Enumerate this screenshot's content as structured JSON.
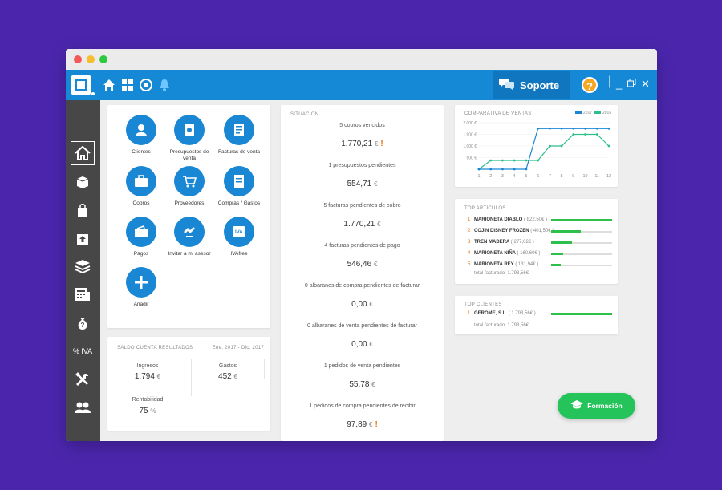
{
  "toolbar": {
    "support_label": "Soporte",
    "help_label": "?"
  },
  "sidebar": {
    "iva_label": "% IVA"
  },
  "shortcuts": [
    {
      "label": "Clientes",
      "icon": "person-icon"
    },
    {
      "label": "Presupuestos de venta",
      "icon": "document-euro-icon"
    },
    {
      "label": "Facturas de venta",
      "icon": "invoice-icon"
    },
    {
      "label": "Cobros",
      "icon": "briefcase-icon"
    },
    {
      "label": "Proveedores",
      "icon": "cart-icon"
    },
    {
      "label": "Compras / Gastos",
      "icon": "receipt-icon"
    },
    {
      "label": "Pagos",
      "icon": "wallet-icon"
    },
    {
      "label": "Invitar a mi asesor",
      "icon": "handshake-icon"
    },
    {
      "label": "IVAfree",
      "icon": "iva-icon"
    },
    {
      "label": "Añadir",
      "icon": "plus-icon"
    }
  ],
  "saldo": {
    "title": "SALDO CUENTA RESULTADOS",
    "period": "Ene. 2017 - Dic. 2017",
    "ingresos_label": "Ingresos",
    "ingresos_value": "1.794",
    "currency": "€",
    "gastos_label": "Gastos",
    "gastos_value": "452",
    "rentabilidad_label": "Rentabilidad",
    "rentabilidad_value": "75",
    "percent": "%"
  },
  "situacion": {
    "title": "SITUACIÓN",
    "items": [
      {
        "label": "5 cobros vencidos",
        "value": "1.770,21",
        "warn": true
      },
      {
        "label": "1 presupuestos pendientes",
        "value": "554,71",
        "warn": false
      },
      {
        "label": "5 facturas pendientes de cobro",
        "value": "1.770,21",
        "warn": false
      },
      {
        "label": "4 facturas pendientes de pago",
        "value": "546,46",
        "warn": false
      },
      {
        "label": "0 albaranes de compra pendientes de facturar",
        "value": "0,00",
        "warn": false
      },
      {
        "label": "0 albaranes de venta pendientes de facturar",
        "value": "0,00",
        "warn": false
      },
      {
        "label": "1 pedidos de venta pendientes",
        "value": "55,78",
        "warn": false
      },
      {
        "label": "1 pedidos de compra pendientes de recibir",
        "value": "97,89",
        "warn": true
      }
    ],
    "currency": "€",
    "warn_glyph": "!"
  },
  "chart_data": {
    "type": "line",
    "title": "COMPARATIVA DE VENTAS",
    "x": [
      1,
      2,
      3,
      4,
      5,
      6,
      7,
      8,
      9,
      10,
      11,
      12
    ],
    "ylim": [
      0,
      2000
    ],
    "yticks": [
      "2.000 €",
      "1.500 €",
      "1.000 €",
      "500 €"
    ],
    "series": [
      {
        "name": "2017",
        "color": "#1a87d4",
        "values": [
          0,
          0,
          0,
          0,
          0,
          1750,
          1750,
          1750,
          1750,
          1750,
          1750,
          1750
        ]
      },
      {
        "name": "2016",
        "color": "#2bbf8a",
        "values": [
          0,
          380,
          380,
          380,
          380,
          380,
          1000,
          1000,
          1500,
          1500,
          1500,
          1000
        ]
      }
    ],
    "legend": "top-right",
    "grid": true
  },
  "top_articulos": {
    "title": "TOP ARTÍCULOS",
    "items": [
      {
        "num": "1",
        "name": "MARIONETA DIABLO",
        "amount": "( 822,50€ )",
        "share": 1.0
      },
      {
        "num": "2",
        "name": "COJÍN DISNEY FROZEN",
        "amount": "( 401,50€ )",
        "share": 0.49
      },
      {
        "num": "3",
        "name": "TREN MADERA",
        "amount": "( 277,02€ )",
        "share": 0.34
      },
      {
        "num": "4",
        "name": "MARIONETA NIÑA",
        "amount": "( 160,60€ )",
        "share": 0.2
      },
      {
        "num": "5",
        "name": "MARIONETA REY",
        "amount": "( 131,94€ )",
        "share": 0.16
      }
    ],
    "total": "total facturado: 1.793,56€"
  },
  "top_clientes": {
    "title": "TOP CLIENTES",
    "items": [
      {
        "num": "1",
        "name": "GEROME, S.L.",
        "amount": "( 1.793,56€ )",
        "share": 1.0
      }
    ],
    "total": "total facturado: 1.793,56€"
  },
  "formacion_label": "Formación"
}
